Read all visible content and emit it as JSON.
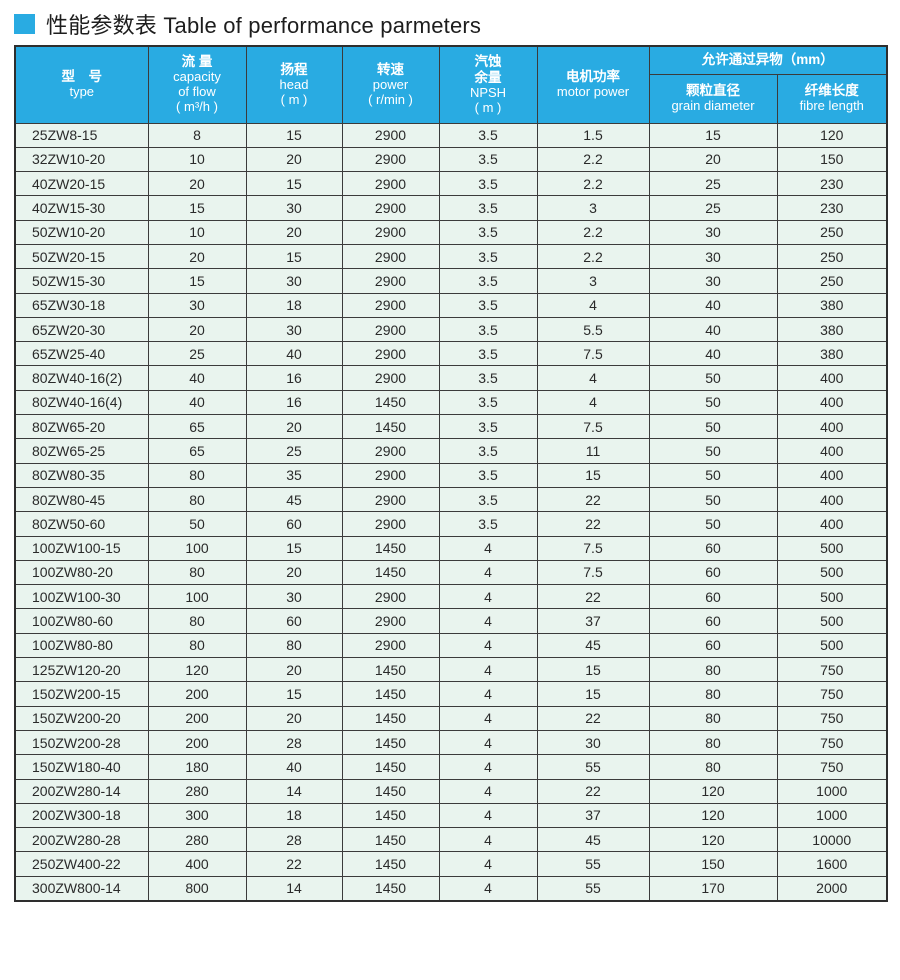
{
  "page": {
    "title": "性能参数表 Table of performance parmeters",
    "accent_color": "#29abe2",
    "row_bg_color": "#e9f4ee",
    "border_color": "#3b3b3b"
  },
  "table": {
    "headers": {
      "type_zh": "型　号",
      "type_en": "type",
      "flow_zh": "流 量",
      "flow_en1": "capacity",
      "flow_en2": "of flow",
      "flow_unit": "( m³/h )",
      "head_zh": "扬程",
      "head_en": "head",
      "head_unit": "( m )",
      "speed_zh": "转速",
      "speed_en": "power",
      "speed_unit": "( r/min )",
      "npsh_zh1": "汽蚀",
      "npsh_zh2": "余量",
      "npsh_en": "NPSH",
      "npsh_unit": "( m )",
      "motor_zh": "电机功率",
      "motor_en": "motor power",
      "foreign_zh": "允许通过异物（mm）",
      "grain_zh": "颗粒直径",
      "grain_en": "grain diameter",
      "fibre_zh": "纤维长度",
      "fibre_en": "fibre length"
    },
    "rows": [
      [
        "25ZW8-15",
        "8",
        "15",
        "2900",
        "3.5",
        "1.5",
        "15",
        "120"
      ],
      [
        "32ZW10-20",
        "10",
        "20",
        "2900",
        "3.5",
        "2.2",
        "20",
        "150"
      ],
      [
        "40ZW20-15",
        "20",
        "15",
        "2900",
        "3.5",
        "2.2",
        "25",
        "230"
      ],
      [
        "40ZW15-30",
        "15",
        "30",
        "2900",
        "3.5",
        "3",
        "25",
        "230"
      ],
      [
        "50ZW10-20",
        "10",
        "20",
        "2900",
        "3.5",
        "2.2",
        "30",
        "250"
      ],
      [
        "50ZW20-15",
        "20",
        "15",
        "2900",
        "3.5",
        "2.2",
        "30",
        "250"
      ],
      [
        "50ZW15-30",
        "15",
        "30",
        "2900",
        "3.5",
        "3",
        "30",
        "250"
      ],
      [
        "65ZW30-18",
        "30",
        "18",
        "2900",
        "3.5",
        "4",
        "40",
        "380"
      ],
      [
        "65ZW20-30",
        "20",
        "30",
        "2900",
        "3.5",
        "5.5",
        "40",
        "380"
      ],
      [
        "65ZW25-40",
        "25",
        "40",
        "2900",
        "3.5",
        "7.5",
        "40",
        "380"
      ],
      [
        "80ZW40-16(2)",
        "40",
        "16",
        "2900",
        "3.5",
        "4",
        "50",
        "400"
      ],
      [
        "80ZW40-16(4)",
        "40",
        "16",
        "1450",
        "3.5",
        "4",
        "50",
        "400"
      ],
      [
        "80ZW65-20",
        "65",
        "20",
        "1450",
        "3.5",
        "7.5",
        "50",
        "400"
      ],
      [
        "80ZW65-25",
        "65",
        "25",
        "2900",
        "3.5",
        "11",
        "50",
        "400"
      ],
      [
        "80ZW80-35",
        "80",
        "35",
        "2900",
        "3.5",
        "15",
        "50",
        "400"
      ],
      [
        "80ZW80-45",
        "80",
        "45",
        "2900",
        "3.5",
        "22",
        "50",
        "400"
      ],
      [
        "80ZW50-60",
        "50",
        "60",
        "2900",
        "3.5",
        "22",
        "50",
        "400"
      ],
      [
        "100ZW100-15",
        "100",
        "15",
        "1450",
        "4",
        "7.5",
        "60",
        "500"
      ],
      [
        "100ZW80-20",
        "80",
        "20",
        "1450",
        "4",
        "7.5",
        "60",
        "500"
      ],
      [
        "100ZW100-30",
        "100",
        "30",
        "2900",
        "4",
        "22",
        "60",
        "500"
      ],
      [
        "100ZW80-60",
        "80",
        "60",
        "2900",
        "4",
        "37",
        "60",
        "500"
      ],
      [
        "100ZW80-80",
        "80",
        "80",
        "2900",
        "4",
        "45",
        "60",
        "500"
      ],
      [
        "125ZW120-20",
        "120",
        "20",
        "1450",
        "4",
        "15",
        "80",
        "750"
      ],
      [
        "150ZW200-15",
        "200",
        "15",
        "1450",
        "4",
        "15",
        "80",
        "750"
      ],
      [
        "150ZW200-20",
        "200",
        "20",
        "1450",
        "4",
        "22",
        "80",
        "750"
      ],
      [
        "150ZW200-28",
        "200",
        "28",
        "1450",
        "4",
        "30",
        "80",
        "750"
      ],
      [
        "150ZW180-40",
        "180",
        "40",
        "1450",
        "4",
        "55",
        "80",
        "750"
      ],
      [
        "200ZW280-14",
        "280",
        "14",
        "1450",
        "4",
        "22",
        "120",
        "1000"
      ],
      [
        "200ZW300-18",
        "300",
        "18",
        "1450",
        "4",
        "37",
        "120",
        "1000"
      ],
      [
        "200ZW280-28",
        "280",
        "28",
        "1450",
        "4",
        "45",
        "120",
        "10000"
      ],
      [
        "250ZW400-22",
        "400",
        "22",
        "1450",
        "4",
        "55",
        "150",
        "1600"
      ],
      [
        "300ZW800-14",
        "800",
        "14",
        "1450",
        "4",
        "55",
        "170",
        "2000"
      ]
    ]
  }
}
